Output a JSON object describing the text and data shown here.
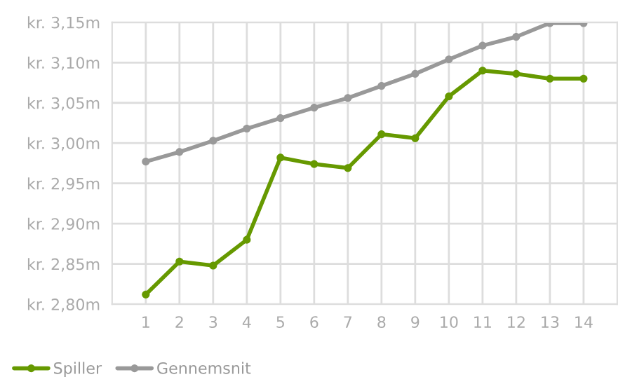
{
  "chart_data": {
    "type": "line",
    "x": [
      1,
      2,
      3,
      4,
      5,
      6,
      7,
      8,
      9,
      10,
      11,
      12,
      13,
      14
    ],
    "series": [
      {
        "name": "Spiller",
        "color": "#669900",
        "values": [
          2.812,
          2.853,
          2.848,
          2.88,
          2.982,
          2.974,
          2.969,
          3.011,
          3.006,
          3.058,
          3.09,
          3.086,
          3.08,
          3.08
        ]
      },
      {
        "name": "Gennemsnit",
        "color": "#999999",
        "values": [
          2.977,
          2.989,
          3.003,
          3.018,
          3.031,
          3.044,
          3.056,
          3.071,
          3.086,
          3.104,
          3.121,
          3.132,
          3.149,
          3.149
        ]
      }
    ],
    "xlim": [
      0,
      15
    ],
    "xticks": [
      1,
      2,
      3,
      4,
      5,
      6,
      7,
      8,
      9,
      10,
      11,
      12,
      13,
      14
    ],
    "ylim": [
      2.8,
      3.15
    ],
    "yticks": [
      {
        "value": 2.8,
        "label": "kr. 2,80m"
      },
      {
        "value": 2.85,
        "label": "kr. 2,85m"
      },
      {
        "value": 2.9,
        "label": "kr. 2,90m"
      },
      {
        "value": 2.95,
        "label": "kr. 2,95m"
      },
      {
        "value": 3.0,
        "label": "kr. 3,00m"
      },
      {
        "value": 3.05,
        "label": "kr. 3,05m"
      },
      {
        "value": 3.1,
        "label": "kr. 3,10m"
      },
      {
        "value": 3.15,
        "label": "kr. 3,15m"
      }
    ],
    "grid": true,
    "legend": "bottom left",
    "marker": "circle",
    "line_style": "solid"
  }
}
